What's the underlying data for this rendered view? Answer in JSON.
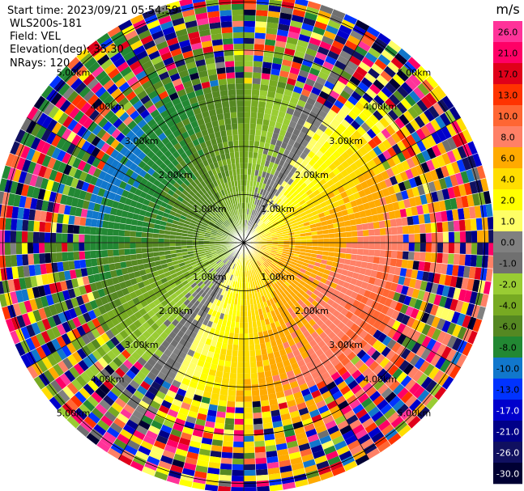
{
  "header": {
    "start_time": "Start time: 2023/09/21 05:54:59",
    "instrument": "WLS200s-181",
    "field": "Field: VEL",
    "elevation": "Elevation(deg): 35.30",
    "nrays": "NRays: 120"
  },
  "colorbar": {
    "unit": "m/s",
    "tick_labels": [
      "26.0",
      "21.0",
      "17.0",
      "13.0",
      "10.0",
      "8.0",
      "6.0",
      "4.0",
      "2.0",
      "1.0",
      "0.0",
      "-1.0",
      "-2.0",
      "-4.0",
      "-6.0",
      "-8.0",
      "-10.0",
      "-13.0",
      "-17.0",
      "-21.0",
      "-26.0",
      "-30.0"
    ],
    "colors": [
      "#ff3399",
      "#ff0066",
      "#e0001a",
      "#ff3300",
      "#ff6633",
      "#ff8066",
      "#ffaa00",
      "#ffdd00",
      "#ffff00",
      "#ffff66",
      "#808080",
      "#707070",
      "#99cc33",
      "#77aa22",
      "#558822",
      "#228833",
      "#1177cc",
      "#0033ff",
      "#0000cc",
      "#000088",
      "#101060",
      "#000033"
    ]
  },
  "chart_data": {
    "type": "heatmap",
    "projection": "polar (PPI)",
    "field": "VEL",
    "units": "m/s",
    "nrays": 120,
    "elevation_deg": 35.3,
    "range_rings_km": [
      1.0,
      2.0,
      3.0,
      4.0,
      5.0
    ],
    "ring_labels": [
      "1.00km",
      "2.00km",
      "3.00km",
      "4.00km",
      "5.00km"
    ],
    "max_range_km": 5.2,
    "radial_spokes_deg": [
      0,
      30,
      60,
      90,
      120,
      150,
      180,
      210,
      240,
      270,
      300,
      330
    ],
    "color_scale_min": -30.0,
    "color_scale_max": 26.0,
    "pattern": {
      "description": "near-range negative velocities toward west/northwest, positive velocities toward east/south, noisy speckle beyond ~3.5 km",
      "negative_lobe_azimuth_deg": 300,
      "positive_lobe_azimuth_deg": 120
    }
  }
}
